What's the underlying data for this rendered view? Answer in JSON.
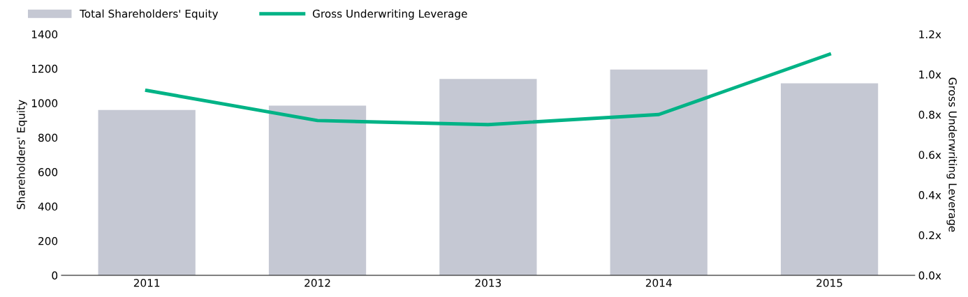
{
  "chart_data": {
    "type": "bar",
    "categories": [
      "2011",
      "2012",
      "2013",
      "2014",
      "2015"
    ],
    "series": [
      {
        "name": "Total Shareholders' Equity",
        "color": "#c5c8d3",
        "values": [
          960,
          985,
          1140,
          1195,
          1115
        ]
      },
      {
        "name": "Gross Underwriting Leverage",
        "type": "line",
        "axis": "y2",
        "color": "#00b386",
        "values": [
          0.92,
          0.77,
          0.75,
          0.8,
          1.1
        ]
      }
    ],
    "ylabel": "Shareholders' Equity",
    "y2label": "Gross Underwriting Leverage",
    "ylim": [
      0,
      1400
    ],
    "yticks": [
      0,
      200,
      400,
      600,
      800,
      1000,
      1200,
      1400
    ],
    "y2lim": [
      0,
      1.2
    ],
    "y2ticks": [
      {
        "value": 0,
        "label": "0.0x"
      },
      {
        "value": 0.2,
        "label": "0.2x"
      },
      {
        "value": 0.4,
        "label": "0.4x"
      },
      {
        "value": 0.6,
        "label": "0.6x"
      },
      {
        "value": 0.8,
        "label": "0.8x"
      },
      {
        "value": 1.0,
        "label": "1.0x"
      },
      {
        "value": 1.2,
        "label": "1.2x"
      }
    ],
    "legend": "top left",
    "grid": false,
    "marker": "none",
    "line_style": "solid"
  }
}
